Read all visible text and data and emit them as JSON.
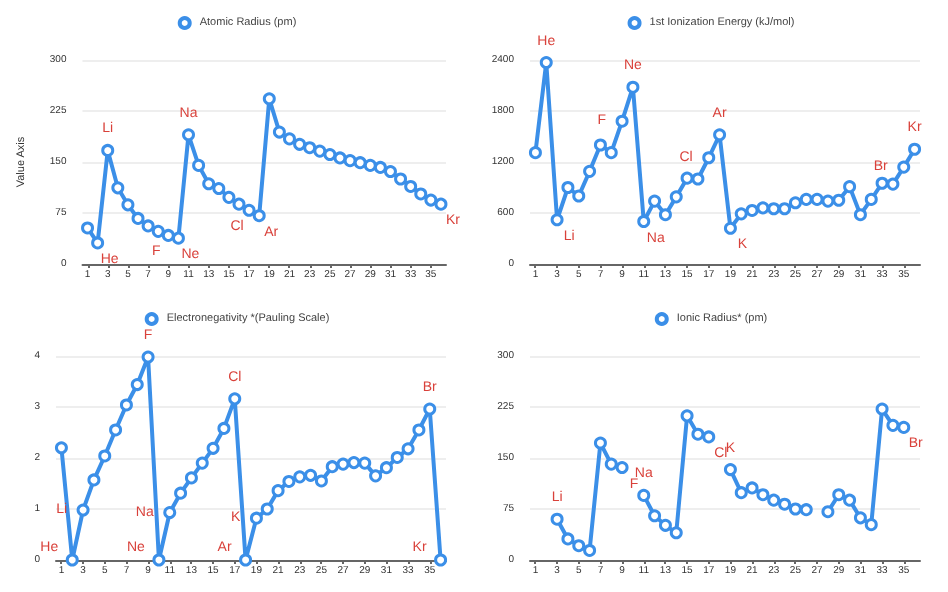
{
  "chart_data": [
    {
      "type": "line",
      "ylabel": "Value Axis",
      "x": [
        1,
        2,
        3,
        4,
        5,
        6,
        7,
        8,
        9,
        10,
        11,
        12,
        13,
        14,
        15,
        16,
        17,
        18,
        19,
        20,
        21,
        22,
        23,
        24,
        25,
        26,
        27,
        28,
        29,
        30,
        31,
        32,
        33,
        34,
        35,
        36
      ],
      "series": [
        {
          "name": "Atomic Radius (pm)",
          "color": "#3b8fe8",
          "values": [
            53,
            31,
            167,
            112,
            87,
            67,
            56,
            48,
            42,
            38,
            190,
            145,
            118,
            111,
            98,
            88,
            79,
            71,
            243,
            194,
            184,
            176,
            171,
            166,
            161,
            156,
            152,
            149,
            145,
            142,
            136,
            125,
            114,
            103,
            94,
            88
          ]
        }
      ],
      "xlim": [
        0.5,
        36.5
      ],
      "xticks": [
        1,
        3,
        5,
        7,
        9,
        11,
        13,
        15,
        17,
        19,
        21,
        23,
        25,
        27,
        29,
        31,
        33,
        35
      ],
      "ylim": [
        0,
        300
      ],
      "yticks": [
        0,
        75,
        150,
        225,
        300
      ],
      "grid": "y",
      "legend": "top",
      "marker": "circle",
      "line_style": "solid",
      "annotations": [
        {
          "text": "He",
          "x": 2,
          "y": 31
        },
        {
          "text": "Li",
          "x": 3,
          "y": 167
        },
        {
          "text": "F",
          "x": 9,
          "y": 42
        },
        {
          "text": "Ne",
          "x": 10,
          "y": 38
        },
        {
          "text": "Na",
          "x": 11,
          "y": 190
        },
        {
          "text": "Cl",
          "x": 17,
          "y": 79
        },
        {
          "text": "Ar",
          "x": 18,
          "y": 71
        },
        {
          "text": "Kr",
          "x": 36,
          "y": 88
        }
      ]
    },
    {
      "type": "line",
      "x": [
        1,
        2,
        3,
        4,
        5,
        6,
        7,
        8,
        9,
        10,
        11,
        12,
        13,
        14,
        15,
        16,
        17,
        18,
        19,
        20,
        21,
        22,
        23,
        24,
        25,
        26,
        27,
        28,
        29,
        30,
        31,
        32,
        33,
        34,
        35,
        36
      ],
      "series": [
        {
          "name": "1st Ionization Energy (kJ/mol)",
          "color": "#3b8fe8",
          "values": [
            1310,
            2370,
            520,
            900,
            800,
            1090,
            1400,
            1310,
            1680,
            2080,
            500,
            740,
            580,
            790,
            1010,
            1000,
            1250,
            1520,
            420,
            590,
            630,
            660,
            650,
            650,
            720,
            760,
            760,
            740,
            750,
            910,
            580,
            760,
            950,
            940,
            1140,
            1350
          ]
        }
      ],
      "xlim": [
        0.5,
        36.5
      ],
      "xticks": [
        1,
        3,
        5,
        7,
        9,
        11,
        13,
        15,
        17,
        19,
        21,
        23,
        25,
        27,
        29,
        31,
        33,
        35
      ],
      "ylim": [
        0,
        2400
      ],
      "yticks": [
        0,
        600,
        1200,
        1800,
        2400
      ],
      "grid": "y",
      "legend": "top",
      "marker": "circle",
      "line_style": "solid",
      "annotations": [
        {
          "text": "He",
          "x": 2,
          "y": 2370
        },
        {
          "text": "Li",
          "x": 3,
          "y": 520
        },
        {
          "text": "F",
          "x": 9,
          "y": 1680
        },
        {
          "text": "Ne",
          "x": 10,
          "y": 2080
        },
        {
          "text": "Na",
          "x": 11,
          "y": 500
        },
        {
          "text": "Cl",
          "x": 17,
          "y": 1250
        },
        {
          "text": "Ar",
          "x": 18,
          "y": 1520
        },
        {
          "text": "K",
          "x": 19,
          "y": 420
        },
        {
          "text": "Br",
          "x": 35,
          "y": 1140
        },
        {
          "text": "Kr",
          "x": 36,
          "y": 1350
        }
      ]
    },
    {
      "type": "line",
      "x": [
        1,
        2,
        3,
        4,
        5,
        6,
        7,
        8,
        9,
        10,
        11,
        12,
        13,
        14,
        15,
        16,
        17,
        18,
        19,
        20,
        21,
        22,
        23,
        24,
        25,
        26,
        27,
        28,
        29,
        30,
        31,
        32,
        33,
        34,
        35,
        36
      ],
      "series": [
        {
          "name": "Electronegativity *(Pauling Scale)",
          "color": "#3b8fe8",
          "values": [
            2.2,
            0,
            0.98,
            1.57,
            2.04,
            2.55,
            3.04,
            3.44,
            3.98,
            0,
            0.93,
            1.31,
            1.61,
            1.9,
            2.19,
            2.58,
            3.16,
            0,
            0.82,
            1.0,
            1.36,
            1.54,
            1.63,
            1.66,
            1.55,
            1.83,
            1.88,
            1.91,
            1.9,
            1.65,
            1.81,
            2.01,
            2.18,
            2.55,
            2.96,
            0
          ]
        }
      ],
      "xlim": [
        0.5,
        36.5
      ],
      "xticks": [
        1,
        3,
        5,
        7,
        9,
        11,
        13,
        15,
        17,
        19,
        21,
        23,
        25,
        27,
        29,
        31,
        33,
        35
      ],
      "ylim": [
        0,
        4
      ],
      "yticks": [
        0,
        1,
        2,
        3,
        4
      ],
      "grid": "y",
      "legend": "top",
      "marker": "circle",
      "line_style": "solid",
      "annotations": [
        {
          "text": "He",
          "x": 2,
          "y": 0
        },
        {
          "text": "Li",
          "x": 3,
          "y": 0.98
        },
        {
          "text": "F",
          "x": 9,
          "y": 3.98
        },
        {
          "text": "Ne",
          "x": 10,
          "y": 0
        },
        {
          "text": "Na",
          "x": 11,
          "y": 0.93
        },
        {
          "text": "Cl",
          "x": 17,
          "y": 3.16
        },
        {
          "text": "Ar",
          "x": 18,
          "y": 0
        },
        {
          "text": "K",
          "x": 19,
          "y": 0.82
        },
        {
          "text": "Br",
          "x": 35,
          "y": 2.96
        },
        {
          "text": "Kr",
          "x": 36,
          "y": 0
        }
      ]
    },
    {
      "type": "line",
      "x": [
        3,
        4,
        5,
        6,
        7,
        8,
        9,
        10,
        11,
        12,
        13,
        14,
        15,
        16,
        17,
        18,
        19,
        20,
        21,
        22,
        23,
        24,
        25,
        26,
        27,
        28,
        29,
        30,
        31,
        32,
        33,
        34,
        35
      ],
      "series": [
        {
          "name": "Ionic Radius* (pm)",
          "color": "#3b8fe8",
          "values": [
            60,
            31,
            21,
            14,
            172,
            141,
            136,
            null,
            95,
            65,
            51,
            40,
            212,
            185,
            181,
            null,
            133,
            99,
            106,
            96,
            88,
            82,
            75,
            74,
            null,
            71,
            96,
            88,
            62,
            52,
            222,
            198,
            195
          ]
        }
      ],
      "xlim": [
        0.5,
        36.5
      ],
      "xticks": [
        1,
        3,
        5,
        7,
        9,
        11,
        13,
        15,
        17,
        19,
        21,
        23,
        25,
        27,
        29,
        31,
        33,
        35
      ],
      "ylim": [
        0,
        300
      ],
      "yticks": [
        0,
        75,
        150,
        225,
        300
      ],
      "grid": "y",
      "legend": "top",
      "marker": "circle",
      "line_style": "solid",
      "annotations": [
        {
          "text": "Li",
          "x": 3,
          "y": 60
        },
        {
          "text": "F",
          "x": 9,
          "y": 136
        },
        {
          "text": "Na",
          "x": 11,
          "y": 95
        },
        {
          "text": "Cl",
          "x": 17,
          "y": 181
        },
        {
          "text": "K",
          "x": 19,
          "y": 133
        },
        {
          "text": "Br",
          "x": 35,
          "y": 195
        }
      ]
    }
  ]
}
